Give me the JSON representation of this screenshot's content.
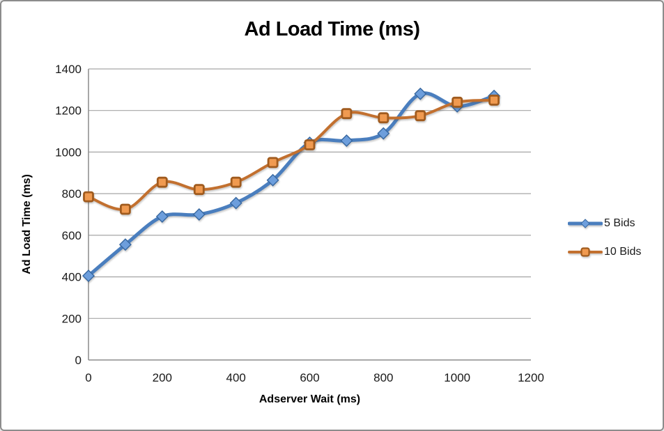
{
  "chart_data": {
    "type": "line",
    "title": "Ad Load Time (ms)",
    "xlabel": "Adserver Wait (ms)",
    "ylabel": "Ad Load Time (ms)",
    "x": [
      0,
      100,
      200,
      300,
      400,
      500,
      600,
      700,
      800,
      900,
      1000,
      1100
    ],
    "series": [
      {
        "name": "5 Bids",
        "marker": "diamond",
        "values": [
          405,
          555,
          690,
          700,
          755,
          865,
          1045,
          1055,
          1090,
          1280,
          1220,
          1270
        ],
        "line_color": "#4A7EBE",
        "line_width": 5,
        "marker_fill": "#6D9EDC",
        "marker_stroke": "#37679F"
      },
      {
        "name": "10 Bids",
        "marker": "square",
        "values": [
          785,
          725,
          855,
          820,
          855,
          950,
          1035,
          1185,
          1165,
          1175,
          1240,
          1250
        ],
        "line_color": "#C2702F",
        "line_width": 4,
        "marker_fill": "#F09A50",
        "marker_stroke": "#A05B1E"
      }
    ],
    "x_ticks": [
      0,
      200,
      400,
      600,
      800,
      1000,
      1200
    ],
    "y_ticks": [
      0,
      200,
      400,
      600,
      800,
      1000,
      1200,
      1400
    ],
    "xlim": [
      0,
      1200
    ],
    "ylim": [
      0,
      1400
    ],
    "grid": "horizontal",
    "smoothed_lines": true,
    "legend_position": "right",
    "colors": {
      "background": "#FFFFFF",
      "border": "#8C8C8C",
      "gridline": "#A6A6A6",
      "axis": "#8C8C8C",
      "title_text": "#000000",
      "tick_text": "#1A1A1A"
    }
  }
}
